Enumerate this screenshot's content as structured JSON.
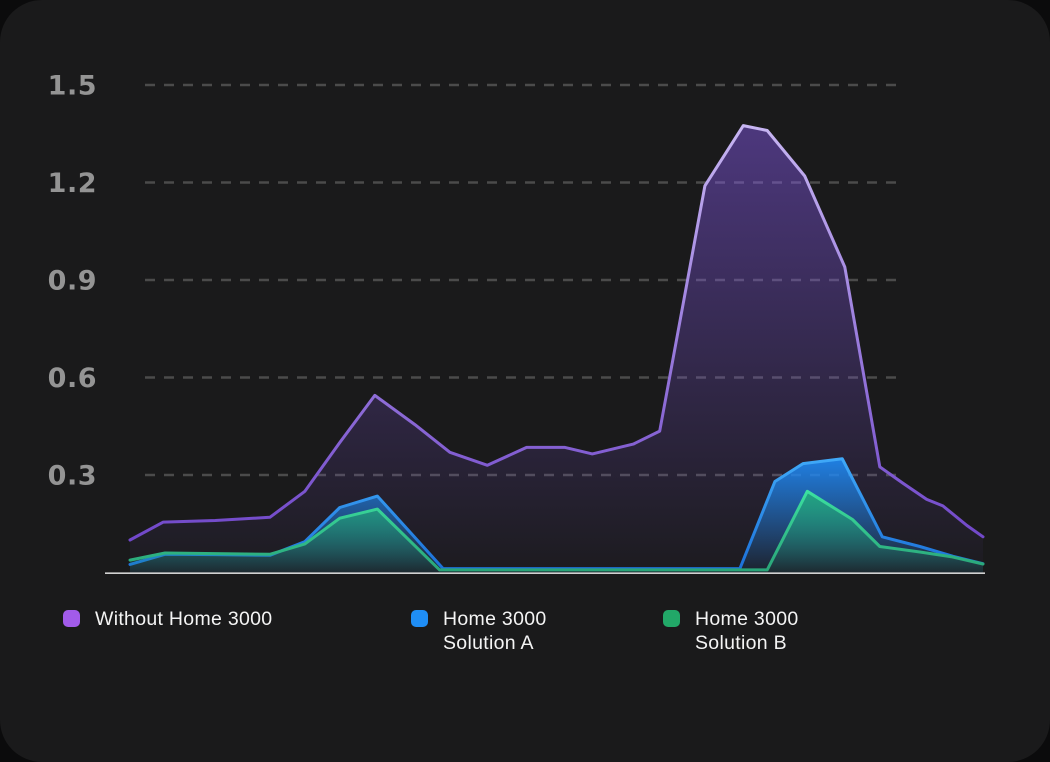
{
  "window": {
    "outer_background": "#0b0b0c",
    "card_background": "#1a1a1b"
  },
  "chart_data": {
    "type": "area",
    "title": "",
    "xlabel": "",
    "ylabel": "",
    "ylim": [
      0,
      1.5
    ],
    "yticks": [
      1.5,
      1.2,
      0.9,
      0.6,
      0.3
    ],
    "ytick_labels": [
      "1.5",
      "1.2",
      "0.9",
      "0.6",
      "0.3"
    ],
    "grid": "horizontal-dashed",
    "grid_color": "#4b4b4b",
    "tick_color": "#949494",
    "axis_color": "#e6e6e6",
    "legend_position": "bottom",
    "x_unit": "percent-of-plot-width",
    "series": [
      {
        "id": "without-home-3000",
        "name": "Without Home 3000",
        "color": "#8b5cf6",
        "stroke_top": "#c7b5f2",
        "stroke_bottom": "#6a3fc6",
        "fill_opacity_top": 0.45,
        "fill_opacity_bottom": 0.02,
        "x": [
          0,
          3.9,
          10,
          16.4,
          20.5,
          24.6,
          28.7,
          33.4,
          37.5,
          41.9,
          46.5,
          51.0,
          54.2,
          59.0,
          62.1,
          67.4,
          71.9,
          74.7,
          79.1,
          83.8,
          87.9,
          90.6,
          93.4,
          95.3,
          98.1,
          100
        ],
        "values": [
          0.1,
          0.155,
          0.16,
          0.17,
          0.25,
          0.4,
          0.545,
          0.455,
          0.37,
          0.33,
          0.385,
          0.385,
          0.365,
          0.395,
          0.435,
          1.19,
          1.375,
          1.36,
          1.22,
          0.94,
          0.325,
          0.275,
          0.225,
          0.205,
          0.145,
          0.11
        ]
      },
      {
        "id": "home-3000-solution-a",
        "name": "Home 3000 Solution A",
        "color": "#1e8af5",
        "stroke_top": "#3fa9f8",
        "stroke_bottom": "#1b6fd8",
        "fill_opacity_top": 0.9,
        "fill_opacity_bottom": 0.06,
        "x": [
          0,
          4.1,
          10,
          16.4,
          20.5,
          24.6,
          29.0,
          36.7,
          45,
          55,
          65,
          71.5,
          75.6,
          78.9,
          83.5,
          88.2,
          92.6,
          96.5,
          100
        ],
        "values": [
          0.025,
          0.056,
          0.055,
          0.053,
          0.095,
          0.2,
          0.235,
          0.012,
          0.012,
          0.012,
          0.012,
          0.012,
          0.28,
          0.335,
          0.35,
          0.11,
          0.08,
          0.05,
          0.027
        ]
      },
      {
        "id": "home-3000-solution-b",
        "name": "Home 3000 Solution B",
        "color": "#22b573",
        "stroke_top": "#3ce0a0",
        "stroke_bottom": "#29a377",
        "fill_opacity_top": 0.8,
        "fill_opacity_bottom": 0.05,
        "x": [
          0,
          4.1,
          10,
          16.4,
          20.5,
          24.6,
          29.0,
          36.3,
          45,
          55,
          65,
          74.7,
          79.4,
          84.7,
          87.9,
          92.6,
          96.4,
          100
        ],
        "values": [
          0.038,
          0.06,
          0.058,
          0.056,
          0.088,
          0.167,
          0.195,
          0.008,
          0.008,
          0.008,
          0.008,
          0.008,
          0.25,
          0.163,
          0.08,
          0.063,
          0.048,
          0.026
        ]
      }
    ]
  },
  "legend": {
    "items": [
      {
        "line1": "Without Home 3000",
        "line2": "",
        "color": "#a25bea"
      },
      {
        "line1": "Home 3000",
        "line2": "Solution A",
        "color": "#1f8ef6"
      },
      {
        "line1": "Home 3000",
        "line2": "Solution B",
        "color": "#22a868"
      }
    ]
  }
}
